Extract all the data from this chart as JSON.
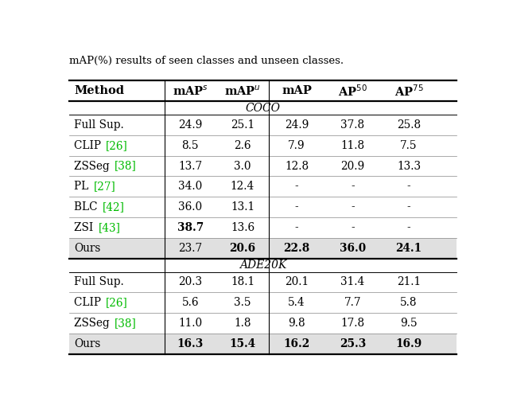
{
  "title_text": "mAP(%) results of seen classes and unseen classes.",
  "coco_rows": [
    {
      "method": "Full Sup.",
      "ref": "",
      "map_s": "24.9",
      "map_u": "25.1",
      "map": "24.9",
      "ap50": "37.8",
      "ap75": "25.8",
      "bold_vals": [],
      "gray_bg": false,
      "bold_method": false
    },
    {
      "method": "CLIP ",
      "ref": "[26]",
      "map_s": "8.5",
      "map_u": "2.6",
      "map": "7.9",
      "ap50": "11.8",
      "ap75": "7.5",
      "bold_vals": [],
      "gray_bg": false,
      "bold_method": false
    },
    {
      "method": "ZSSeg ",
      "ref": "[38]",
      "map_s": "13.7",
      "map_u": "3.0",
      "map": "12.8",
      "ap50": "20.9",
      "ap75": "13.3",
      "bold_vals": [],
      "gray_bg": false,
      "bold_method": false
    },
    {
      "method": "PL ",
      "ref": "[27]",
      "map_s": "34.0",
      "map_u": "12.4",
      "map": "-",
      "ap50": "-",
      "ap75": "-",
      "bold_vals": [],
      "gray_bg": false,
      "bold_method": false
    },
    {
      "method": "BLC ",
      "ref": "[42]",
      "map_s": "36.0",
      "map_u": "13.1",
      "map": "-",
      "ap50": "-",
      "ap75": "-",
      "bold_vals": [],
      "gray_bg": false,
      "bold_method": false
    },
    {
      "method": "ZSI ",
      "ref": "[43]",
      "map_s": "38.7",
      "map_u": "13.6",
      "map": "-",
      "ap50": "-",
      "ap75": "-",
      "bold_vals": [
        0
      ],
      "gray_bg": false,
      "bold_method": false
    },
    {
      "method": "Ours",
      "ref": "",
      "map_s": "23.7",
      "map_u": "20.6",
      "map": "22.8",
      "ap50": "36.0",
      "ap75": "24.1",
      "bold_vals": [
        1,
        2,
        3,
        4
      ],
      "gray_bg": true,
      "bold_method": false
    }
  ],
  "ade_rows": [
    {
      "method": "Full Sup.",
      "ref": "",
      "map_s": "20.3",
      "map_u": "18.1",
      "map": "20.1",
      "ap50": "31.4",
      "ap75": "21.1",
      "bold_vals": [],
      "gray_bg": false,
      "bold_method": false
    },
    {
      "method": "CLIP ",
      "ref": "[26]",
      "map_s": "5.6",
      "map_u": "3.5",
      "map": "5.4",
      "ap50": "7.7",
      "ap75": "5.8",
      "bold_vals": [],
      "gray_bg": false,
      "bold_method": false
    },
    {
      "method": "ZSSeg ",
      "ref": "[38]",
      "map_s": "11.0",
      "map_u": "1.8",
      "map": "9.8",
      "ap50": "17.8",
      "ap75": "9.5",
      "bold_vals": [],
      "gray_bg": false,
      "bold_method": false
    },
    {
      "method": "Ours",
      "ref": "",
      "map_s": "16.3",
      "map_u": "15.4",
      "map": "16.2",
      "ap50": "25.3",
      "ap75": "16.9",
      "bold_vals": [
        0,
        1,
        2,
        3,
        4
      ],
      "gray_bg": true,
      "bold_method": false
    }
  ],
  "green_color": "#00BB00",
  "bg_gray": "#E0E0E0",
  "figsize": [
    6.4,
    5.05
  ]
}
